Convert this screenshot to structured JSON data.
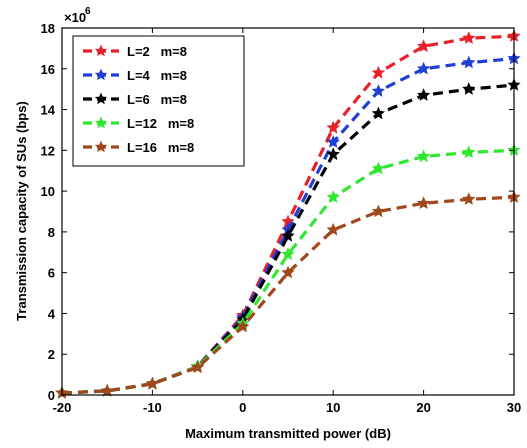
{
  "chart_data": {
    "type": "line",
    "xlabel": "Maximum transmitted power (dB)",
    "ylabel": "Transmission capacity of SUs (bps)",
    "exponent_label": "×10",
    "exponent_power": "6",
    "xlim": [
      -20,
      30
    ],
    "ylim": [
      0,
      18
    ],
    "xticks": [
      "-20",
      "-10",
      "0",
      "10",
      "20",
      "30"
    ],
    "yticks": [
      "0",
      "2",
      "4",
      "6",
      "8",
      "10",
      "12",
      "14",
      "16",
      "18"
    ],
    "x": [
      -20,
      -15,
      -10,
      -5,
      0,
      5,
      10,
      15,
      20,
      25,
      30
    ],
    "grid": false,
    "legend_position": "top-left",
    "series": [
      {
        "name": "L=2   m=8",
        "color": "#e8202a",
        "values": [
          0.1,
          0.2,
          0.55,
          1.4,
          3.9,
          8.5,
          13.1,
          15.8,
          17.1,
          17.5,
          17.6
        ]
      },
      {
        "name": "L=4   m=8",
        "color": "#1f3fd6",
        "values": [
          0.1,
          0.2,
          0.55,
          1.4,
          3.8,
          8.1,
          12.4,
          14.9,
          16.0,
          16.3,
          16.5
        ]
      },
      {
        "name": "L=6   m=8",
        "color": "#000000",
        "values": [
          0.1,
          0.2,
          0.55,
          1.4,
          3.7,
          7.8,
          11.8,
          13.8,
          14.7,
          15.0,
          15.2
        ]
      },
      {
        "name": "L=12   m=8",
        "color": "#2ee82e",
        "values": [
          0.1,
          0.2,
          0.55,
          1.4,
          3.5,
          6.9,
          9.7,
          11.1,
          11.7,
          11.9,
          12.0
        ]
      },
      {
        "name": "L=16   m=8",
        "color": "#a0481c",
        "values": [
          0.1,
          0.2,
          0.55,
          1.35,
          3.35,
          6.0,
          8.1,
          9.0,
          9.4,
          9.6,
          9.7
        ]
      }
    ]
  }
}
